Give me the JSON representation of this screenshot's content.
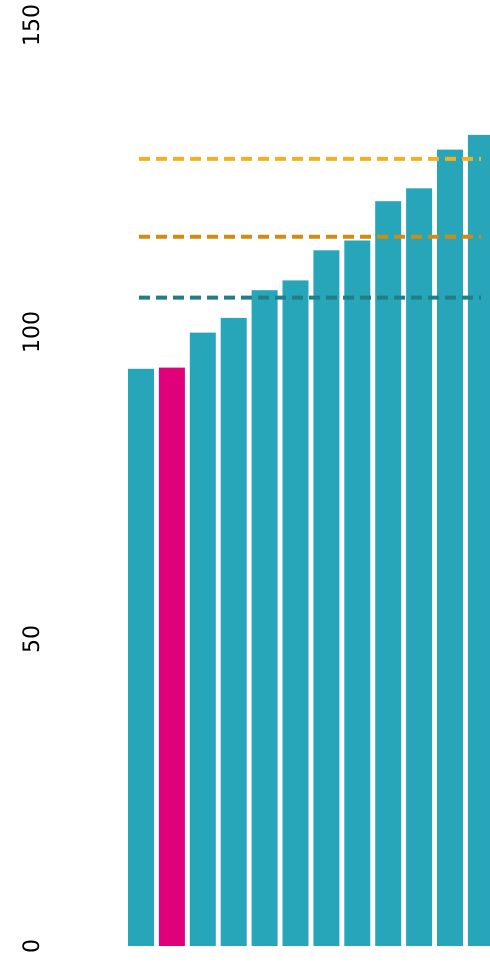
{
  "chart_data": {
    "type": "bar",
    "orientation": "vertical",
    "ylim": [
      0,
      150
    ],
    "yticks": [
      {
        "value": 0,
        "label": "0"
      },
      {
        "value": 50,
        "label": "50"
      },
      {
        "value": 100,
        "label": "100"
      },
      {
        "value": 150,
        "label": "150"
      }
    ],
    "ytick_label_rotation": "vertical",
    "grid": false,
    "values": [
      94,
      94.2,
      99.9,
      102.3,
      106.8,
      108.4,
      113.3,
      114.9,
      121.3,
      123.4,
      129.7,
      132.1
    ],
    "highlight_index": 1,
    "colors": {
      "bar": "#28A6B9",
      "highlight": "#E0007A"
    },
    "reference_lines": [
      {
        "value": 128.2,
        "color": "#F5B020",
        "style": "dashed"
      },
      {
        "value": 115.5,
        "color": "#D08C10",
        "style": "dashed"
      },
      {
        "value": 105.6,
        "color": "#1F7E88",
        "style": "dashed"
      }
    ]
  }
}
